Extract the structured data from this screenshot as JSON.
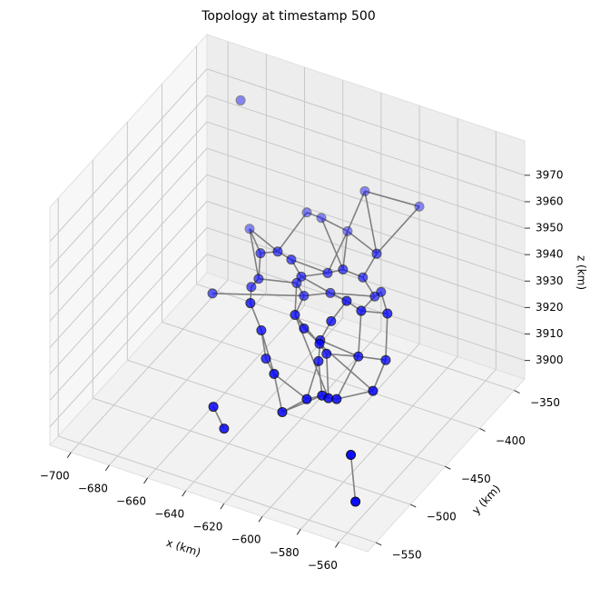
{
  "chart_data": {
    "type": "network3d",
    "title": "Topology at timestamp 500",
    "xlabel": "x (km)",
    "ylabel": "y (km)",
    "zlabel": "z (km)",
    "xlim": [
      -711,
      -545
    ],
    "ylim": [
      -562,
      -335
    ],
    "zlim": [
      3893,
      3983
    ],
    "xticks": [
      {
        "value": -700,
        "label": "−700"
      },
      {
        "value": -680,
        "label": "−680"
      },
      {
        "value": -660,
        "label": "−660"
      },
      {
        "value": -640,
        "label": "−640"
      },
      {
        "value": -620,
        "label": "−620"
      },
      {
        "value": -600,
        "label": "−600"
      },
      {
        "value": -580,
        "label": "−580"
      },
      {
        "value": -560,
        "label": "−560"
      }
    ],
    "yticks": [
      {
        "value": -550,
        "label": "−550"
      },
      {
        "value": -500,
        "label": "−500"
      },
      {
        "value": -450,
        "label": "−450"
      },
      {
        "value": -400,
        "label": "−400"
      },
      {
        "value": -350,
        "label": "−350"
      }
    ],
    "zticks": [
      3900,
      3910,
      3920,
      3930,
      3940,
      3950,
      3960,
      3970
    ],
    "grid": true,
    "node_color": "#0000ff",
    "edge_color": "#808080",
    "x": [
      -688,
      -623.1,
      -594.6,
      -653.4,
      -645.8,
      -683.3,
      -632.1,
      -643.3,
      -652.3,
      -636.2,
      -591.6,
      -609.2,
      -617.2,
      -631,
      -653.3,
      -598.8,
      -633.4,
      -657.1,
      -677.4,
      -615.8,
      -629.6,
      -589.3,
      -592.6,
      -589.2,
      -639.5,
      -581.6,
      -567.9,
      -616.2,
      -597.3,
      -611.5,
      -633.8,
      -603,
      -603.4,
      -599.7,
      -583.1,
      -568.8,
      -631.4,
      -603.9,
      -616.3,
      -564.6,
      -599.2,
      -591.2,
      -587.9,
      -583.6,
      -612,
      -648,
      -642.4,
      -561.7,
      -559.3
    ],
    "y": [
      -350,
      -350,
      -350,
      -350,
      -350,
      -350,
      -350,
      -420,
      -420,
      -420,
      -420,
      -420,
      -420,
      -420,
      -420,
      -420,
      -420,
      -420,
      -420,
      -420,
      -420,
      -420,
      -420,
      -470,
      -470,
      -470,
      -470,
      -470,
      -470,
      -470,
      -470,
      -470,
      -470,
      -470,
      -470,
      -470,
      -470,
      -470,
      -500,
      -500,
      -500,
      -500,
      -500,
      -500,
      -500,
      -500,
      -500,
      -540,
      -540
    ],
    "z": [
      3968,
      3949.4,
      3950.5,
      3934,
      3933.8,
      3920.6,
      3932.1,
      3941.8,
      3939,
      3940.5,
      3953.5,
      3943.3,
      3940,
      3935.3,
      3929.1,
      3942.8,
      3932.3,
      3925.1,
      3917.7,
      3932.8,
      3928.4,
      3939.6,
      3937.1,
      3950.6,
      3937.6,
      3948.7,
      3951,
      3938.8,
      3941,
      3934.8,
      3928.7,
      3932.4,
      3931,
      3928.1,
      3931.1,
      3933.2,
      3918.6,
      3924.3,
      3925.1,
      3931.2,
      3919.7,
      3923,
      3922.8,
      3923.5,
      3911.7,
      3905,
      3898.1,
      3919.2,
      3902.1
    ],
    "edges": [
      [
        1,
        2
      ],
      [
        1,
        6
      ],
      [
        1,
        10
      ],
      [
        2,
        10
      ],
      [
        3,
        4
      ],
      [
        3,
        7
      ],
      [
        4,
        6
      ],
      [
        4,
        11
      ],
      [
        5,
        8
      ],
      [
        5,
        7
      ],
      [
        5,
        14
      ],
      [
        6,
        11
      ],
      [
        6,
        10
      ],
      [
        6,
        12
      ],
      [
        7,
        9
      ],
      [
        7,
        8
      ],
      [
        8,
        14
      ],
      [
        9,
        13
      ],
      [
        9,
        12
      ],
      [
        10,
        15
      ],
      [
        11,
        15
      ],
      [
        12,
        13
      ],
      [
        13,
        16
      ],
      [
        14,
        16
      ],
      [
        14,
        17
      ],
      [
        17,
        24
      ],
      [
        18,
        20
      ],
      [
        16,
        20
      ],
      [
        16,
        27
      ],
      [
        19,
        22
      ],
      [
        19,
        20
      ],
      [
        21,
        22
      ],
      [
        21,
        26
      ],
      [
        15,
        22
      ],
      [
        22,
        25
      ],
      [
        23,
        25
      ],
      [
        23,
        19
      ],
      [
        25,
        26
      ],
      [
        27,
        29
      ],
      [
        28,
        23
      ],
      [
        28,
        31
      ],
      [
        24,
        30
      ],
      [
        30,
        36
      ],
      [
        27,
        32
      ],
      [
        29,
        32
      ],
      [
        31,
        34
      ],
      [
        32,
        33
      ],
      [
        33,
        34
      ],
      [
        34,
        35
      ],
      [
        26,
        35
      ],
      [
        35,
        39
      ],
      [
        25,
        34
      ],
      [
        36,
        38
      ],
      [
        38,
        40
      ],
      [
        37,
        41
      ],
      [
        37,
        40
      ],
      [
        33,
        42
      ],
      [
        40,
        41
      ],
      [
        41,
        42
      ],
      [
        42,
        43
      ],
      [
        43,
        39
      ],
      [
        44,
        38
      ],
      [
        44,
        40
      ],
      [
        44,
        41
      ],
      [
        34,
        43
      ],
      [
        31,
        37
      ],
      [
        32,
        39
      ],
      [
        27,
        42
      ],
      [
        30,
        38
      ],
      [
        45,
        46
      ],
      [
        47,
        48
      ],
      [
        19,
        23
      ],
      [
        11,
        12
      ],
      [
        13,
        19
      ],
      [
        20,
        27
      ]
    ]
  }
}
